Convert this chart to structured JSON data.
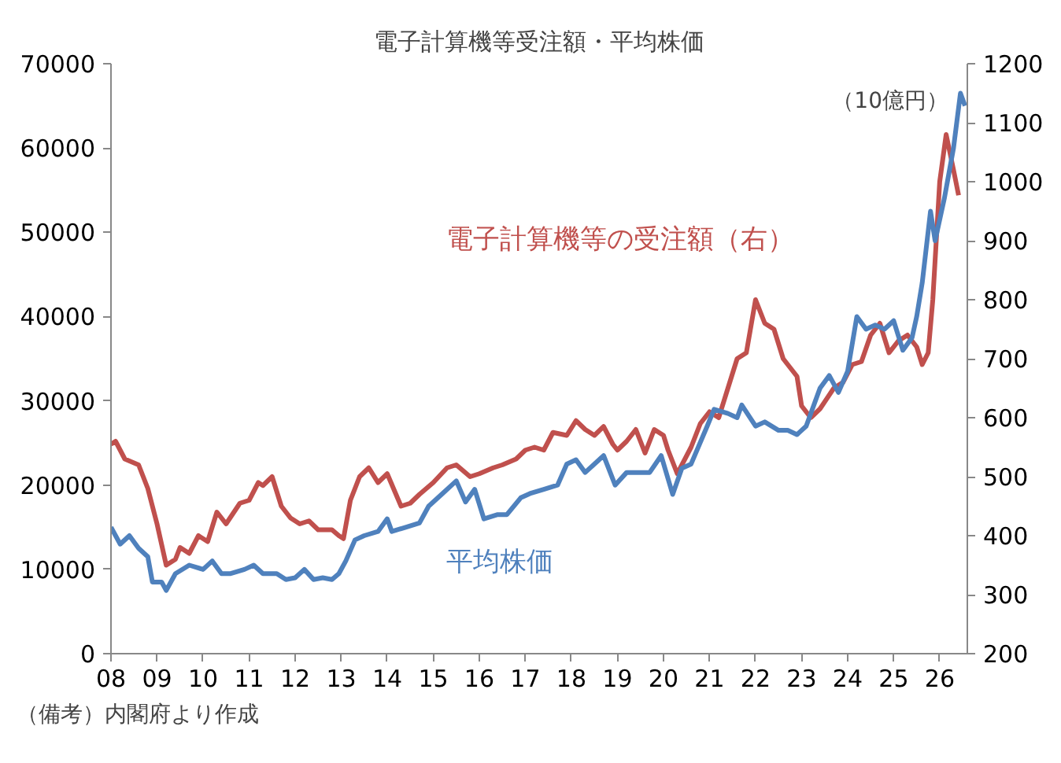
{
  "chart_data": {
    "type": "line",
    "title": "電子計算機等受注額・平均株価",
    "y2label": "（10億円）",
    "annotations": [
      "（備考）内閣府より作成"
    ],
    "xlim": [
      2008,
      2026.6
    ],
    "xticks": [
      {
        "value": 2008,
        "label": "08"
      },
      {
        "value": 2009,
        "label": "09"
      },
      {
        "value": 2010,
        "label": "10"
      },
      {
        "value": 2011,
        "label": "11"
      },
      {
        "value": 2012,
        "label": "12"
      },
      {
        "value": 2013,
        "label": "13"
      },
      {
        "value": 2014,
        "label": "14"
      },
      {
        "value": 2015,
        "label": "15"
      },
      {
        "value": 2016,
        "label": "16"
      },
      {
        "value": 2017,
        "label": "17"
      },
      {
        "value": 2018,
        "label": "18"
      },
      {
        "value": 2019,
        "label": "19"
      },
      {
        "value": 2020,
        "label": "20"
      },
      {
        "value": 2021,
        "label": "21"
      },
      {
        "value": 2022,
        "label": "22"
      },
      {
        "value": 2023,
        "label": "23"
      },
      {
        "value": 2024,
        "label": "24"
      },
      {
        "value": 2025,
        "label": "25"
      },
      {
        "value": 2026,
        "label": "26"
      }
    ],
    "ylim": [
      0,
      70000
    ],
    "yticks": [
      0,
      10000,
      20000,
      30000,
      40000,
      50000,
      60000,
      70000
    ],
    "y2lim": [
      200,
      1200
    ],
    "y2ticks": [
      200,
      300,
      400,
      500,
      600,
      700,
      800,
      900,
      1000,
      1100,
      1200
    ],
    "grid": false,
    "line_style": "solid",
    "marker": "none",
    "series": [
      {
        "name": "電子計算機等の受注額（右）",
        "color": "#c0504d",
        "axis": "y2",
        "x": [
          2008.0,
          2008.1,
          2008.3,
          2008.6,
          2008.8,
          2009.0,
          2009.2,
          2009.4,
          2009.5,
          2009.7,
          2009.9,
          2010.1,
          2010.3,
          2010.5,
          2010.8,
          2011.0,
          2011.2,
          2011.3,
          2011.5,
          2011.7,
          2011.9,
          2012.1,
          2012.3,
          2012.5,
          2012.8,
          2012.95,
          2013.05,
          2013.2,
          2013.4,
          2013.6,
          2013.8,
          2014.0,
          2014.3,
          2014.5,
          2014.7,
          2015.0,
          2015.3,
          2015.5,
          2015.8,
          2016.0,
          2016.3,
          2016.5,
          2016.8,
          2017.0,
          2017.2,
          2017.4,
          2017.6,
          2017.9,
          2018.1,
          2018.3,
          2018.5,
          2018.7,
          2018.9,
          2019.0,
          2019.2,
          2019.4,
          2019.6,
          2019.8,
          2020.0,
          2020.1,
          2020.3,
          2020.6,
          2020.8,
          2021.0,
          2021.2,
          2021.4,
          2021.6,
          2021.8,
          2022.0,
          2022.2,
          2022.4,
          2022.6,
          2022.9,
          2023.0,
          2023.2,
          2023.4,
          2023.7,
          2023.9,
          2024.1,
          2024.3,
          2024.5,
          2024.7,
          2024.9,
          2025.1,
          2025.3,
          2025.5,
          2025.62,
          2025.75,
          2025.85,
          2026.0,
          2026.14,
          2026.3,
          2026.41
        ],
        "values": [
          555,
          560,
          530,
          520,
          480,
          420,
          350,
          360,
          380,
          370,
          400,
          390,
          440,
          420,
          455,
          460,
          490,
          485,
          500,
          450,
          430,
          420,
          425,
          410,
          410,
          400,
          395,
          460,
          500,
          515,
          490,
          505,
          450,
          455,
          470,
          490,
          515,
          520,
          500,
          505,
          515,
          520,
          530,
          545,
          550,
          545,
          575,
          570,
          595,
          580,
          570,
          585,
          555,
          545,
          560,
          580,
          540,
          580,
          570,
          545,
          505,
          550,
          590,
          610,
          600,
          650,
          700,
          710,
          800,
          760,
          750,
          700,
          670,
          620,
          600,
          615,
          650,
          660,
          690,
          695,
          740,
          760,
          710,
          730,
          740,
          720,
          690,
          710,
          800,
          1000,
          1080,
          1020,
          977
        ]
      },
      {
        "name": "平均株価",
        "color": "#4f81bd",
        "x": [
          2008.0,
          2008.2,
          2008.4,
          2008.6,
          2008.8,
          2008.9,
          2009.1,
          2009.2,
          2009.4,
          2009.7,
          2010.0,
          2010.2,
          2010.4,
          2010.6,
          2010.9,
          2011.1,
          2011.3,
          2011.6,
          2011.8,
          2012.0,
          2012.2,
          2012.4,
          2012.6,
          2012.8,
          2012.95,
          2013.1,
          2013.3,
          2013.5,
          2013.8,
          2014.0,
          2014.1,
          2014.4,
          2014.7,
          2014.9,
          2015.2,
          2015.5,
          2015.7,
          2015.9,
          2016.1,
          2016.4,
          2016.6,
          2016.9,
          2017.1,
          2017.4,
          2017.7,
          2017.9,
          2018.1,
          2018.3,
          2018.7,
          2018.95,
          2019.2,
          2019.5,
          2019.7,
          2019.95,
          2020.2,
          2020.4,
          2020.6,
          2020.95,
          2021.1,
          2021.4,
          2021.6,
          2021.7,
          2022.0,
          2022.2,
          2022.5,
          2022.7,
          2022.9,
          2023.1,
          2023.4,
          2023.6,
          2023.8,
          2024.0,
          2024.2,
          2024.4,
          2024.6,
          2024.8,
          2025.0,
          2025.2,
          2025.4,
          2025.5,
          2025.62,
          2025.8,
          2025.9,
          2026.1,
          2026.3,
          2026.45,
          2026.55
        ],
        "values": [
          15000,
          13000,
          14000,
          12500,
          11500,
          8500,
          8500,
          7500,
          9500,
          10500,
          10000,
          11000,
          9500,
          9500,
          10000,
          10500,
          9500,
          9500,
          8800,
          9000,
          10000,
          8800,
          9000,
          8800,
          9500,
          11000,
          13500,
          14000,
          14500,
          16000,
          14500,
          15000,
          15500,
          17500,
          19000,
          20500,
          18000,
          19500,
          16000,
          16500,
          16500,
          18500,
          19000,
          19500,
          20000,
          22500,
          23000,
          21500,
          23500,
          20000,
          21500,
          21500,
          21500,
          23500,
          18900,
          22000,
          22500,
          27000,
          29000,
          28500,
          28000,
          29500,
          27000,
          27500,
          26500,
          26500,
          26000,
          27000,
          31500,
          33000,
          31000,
          33500,
          40000,
          38500,
          39000,
          38500,
          39500,
          36000,
          37500,
          40000,
          44000,
          52500,
          49000,
          54000,
          60000,
          66500,
          65000
        ]
      }
    ]
  }
}
